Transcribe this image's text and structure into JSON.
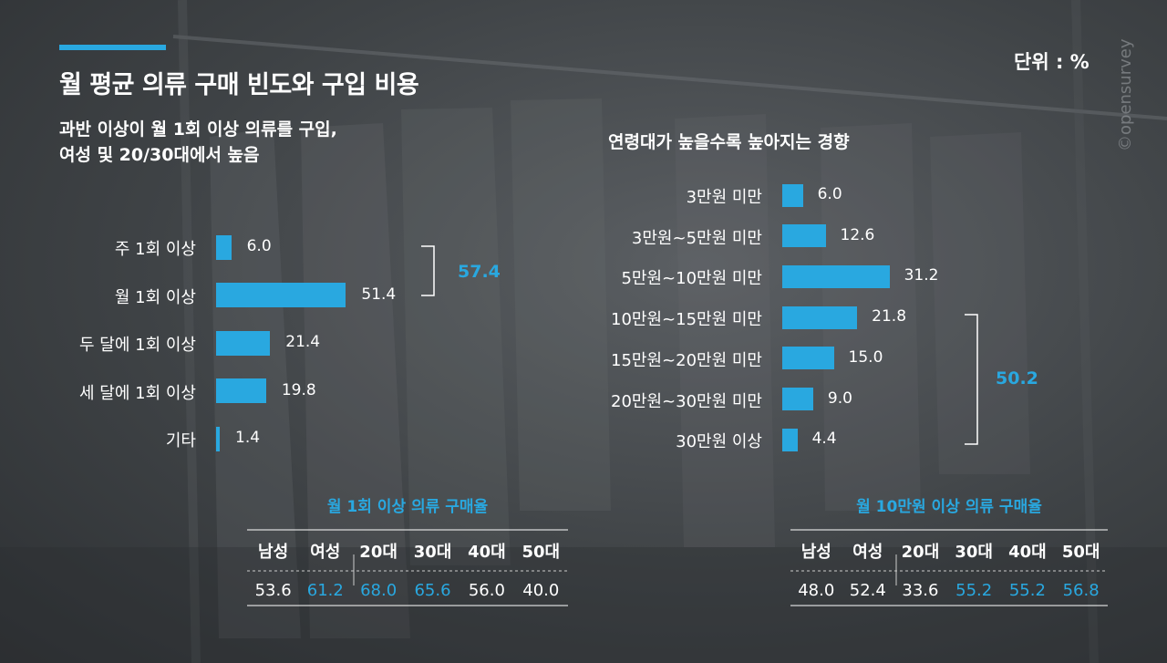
{
  "title": "월 평균 의류 구매 빈도와 구입 비용",
  "unit_label": "단위 : %",
  "watermark": "©opensurvey",
  "colors": {
    "accent": "#29a8e0",
    "text": "#ffffff"
  },
  "left_panel": {
    "subtitle_line1": "과반 이상이 월 1회 이상 의류를 구입,",
    "subtitle_line2": "여성 및 20/30대에서 높음",
    "bracket_total": "57.4",
    "table_title": "월 1회 이상 의류 구매율",
    "table_headers": [
      "남성",
      "여성",
      "20대",
      "30대",
      "40대",
      "50대"
    ],
    "table_values": [
      "53.6",
      "61.2",
      "68.0",
      "65.6",
      "56.0",
      "40.0"
    ]
  },
  "right_panel": {
    "subtitle": "연령대가 높을수록 높아지는 경향",
    "bracket_total": "50.2",
    "table_title": "월 10만원 이상 의류 구매율",
    "table_headers": [
      "남성",
      "여성",
      "20대",
      "30대",
      "40대",
      "50대"
    ],
    "table_values": [
      "48.0",
      "52.4",
      "33.6",
      "55.2",
      "55.2",
      "56.8"
    ]
  },
  "chart_data": [
    {
      "type": "bar",
      "orientation": "horizontal",
      "categories": [
        "주 1회 이상",
        "월 1회 이상",
        "두 달에 1회 이상",
        "세 달에 1회 이상",
        "기타"
      ],
      "values": [
        6.0,
        51.4,
        21.4,
        19.8,
        1.4
      ],
      "value_labels": [
        "6.0",
        "51.4",
        "21.4",
        "19.8",
        "1.4"
      ]
    },
    {
      "type": "bar",
      "orientation": "horizontal",
      "categories": [
        "3만원 미만",
        "3만원~5만원 미만",
        "5만원~10만원 미만",
        "10만원~15만원 미만",
        "15만원~20만원 미만",
        "20만원~30만원 미만",
        "30만원 이상"
      ],
      "values": [
        6.0,
        12.6,
        31.2,
        21.8,
        15.0,
        9.0,
        4.4
      ],
      "value_labels": [
        "6.0",
        "12.6",
        "31.2",
        "21.8",
        "15.0",
        "9.0",
        "4.4"
      ]
    }
  ]
}
